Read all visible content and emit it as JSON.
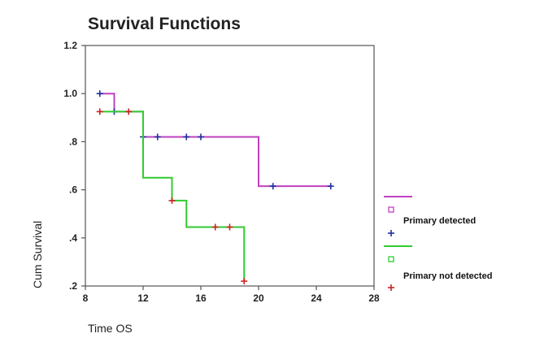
{
  "chart_data": {
    "type": "line",
    "title": "Survival Functions",
    "xlabel": "Time OS",
    "ylabel": "Cum Survival",
    "xlim": [
      8,
      28
    ],
    "ylim": [
      0.2,
      1.2
    ],
    "x_ticks": [
      8,
      12,
      16,
      20,
      24,
      28
    ],
    "y_ticks": [
      0.2,
      0.4,
      0.6,
      0.8,
      1.0,
      1.2
    ],
    "x_tick_labels": [
      "8",
      "12",
      "16",
      "20",
      "24",
      "28"
    ],
    "y_tick_labels": [
      ".2",
      ".4",
      ".6",
      ".8",
      "1.0",
      "1.2"
    ],
    "grid": false,
    "legend_position": "right",
    "series": [
      {
        "name": "Primary detected",
        "color": "#c040c0",
        "censor_color": "#1f2f9e",
        "steps": [
          [
            9,
            1.0
          ],
          [
            10,
            0.925
          ],
          [
            12,
            0.82
          ],
          [
            20,
            0.615
          ],
          [
            25,
            0.615
          ]
        ],
        "censored": [
          [
            9,
            1.0
          ],
          [
            10,
            0.925
          ],
          [
            12,
            0.82
          ],
          [
            13,
            0.82
          ],
          [
            15,
            0.82
          ],
          [
            16,
            0.82
          ],
          [
            21,
            0.615
          ],
          [
            25,
            0.615
          ]
        ]
      },
      {
        "name": "Primary not detected",
        "color": "#30cc30",
        "censor_color": "#cc2222",
        "steps": [
          [
            9,
            0.925
          ],
          [
            12,
            0.65
          ],
          [
            14,
            0.555
          ],
          [
            15,
            0.445
          ],
          [
            19,
            0.22
          ],
          [
            19,
            0.22
          ]
        ],
        "censored": [
          [
            9,
            0.925
          ],
          [
            11,
            0.925
          ],
          [
            14,
            0.555
          ],
          [
            17,
            0.445
          ],
          [
            18,
            0.445
          ],
          [
            19,
            0.22
          ]
        ]
      }
    ]
  }
}
